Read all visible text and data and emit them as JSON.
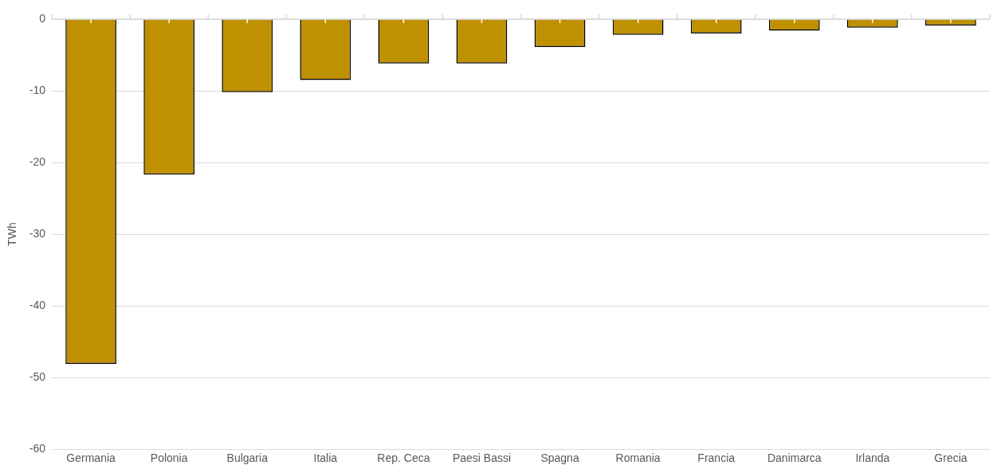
{
  "chart_data": {
    "type": "bar",
    "ylabel": "TWh",
    "categories": [
      "Germania",
      "Polonia",
      "Bulgaria",
      "Italia",
      "Rep. Ceca",
      "Paesi Bassi",
      "Spagna",
      "Romania",
      "Francia",
      "Danimarca",
      "Irlanda",
      "Grecia"
    ],
    "values": [
      -48.1,
      -21.7,
      -10.2,
      -8.5,
      -6.2,
      -6.2,
      -3.9,
      -2.2,
      -2.0,
      -1.6,
      -1.2,
      -0.9
    ],
    "color": "#bf9000",
    "ylim": [
      -60,
      0
    ],
    "yticks": [
      -60,
      -50,
      -40,
      -30,
      -20,
      -10,
      0
    ],
    "grid": "y",
    "legend": false
  }
}
